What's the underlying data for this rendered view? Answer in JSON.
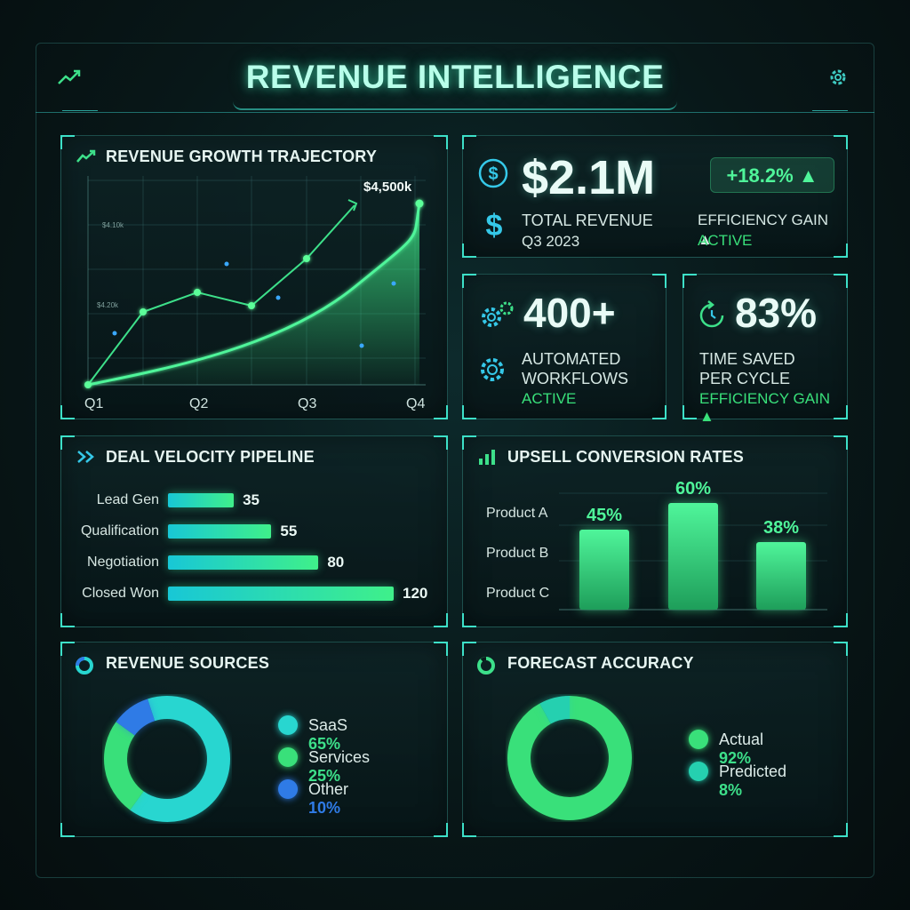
{
  "header": {
    "title": "REVENUE INTELLIGENCE",
    "left_icon": "trending-up-icon",
    "right_icon": "gear-icon"
  },
  "growth": {
    "title": "REVENUE GROWTH TRAJECTORY",
    "peak_label": "$4,500k",
    "y_ticks": [
      "$4.10k",
      "$4.20k"
    ],
    "chart_data": {
      "type": "line",
      "categories": [
        "Q1",
        "Q2",
        "Q3",
        "Q4"
      ],
      "title": "REVENUE GROWTH TRAJECTORY",
      "grid": true,
      "annotations": [
        "$4,500k"
      ]
    }
  },
  "total_revenue": {
    "value": "$2.1M",
    "label": "TOTAL REVENUE",
    "period": "Q3 2023",
    "badge": "+18.2% ▲",
    "gain_label": "EFFICIENCY GAIN ▲",
    "gain_status": "ACTIVE",
    "colors": {
      "accent": "#39e07a",
      "secondary": "#35c8e8"
    }
  },
  "workflows": {
    "value": "400+",
    "label_line1": "AUTOMATED",
    "label_line2": "WORKFLOWS",
    "status": "ACTIVE"
  },
  "time_saved": {
    "value": "83%",
    "label_line1": "TIME SAVED",
    "label_line2": "PER CYCLE",
    "status": "EFFICIENCY GAIN ▲"
  },
  "pipeline": {
    "title": "DEAL VELOCITY PIPELINE",
    "chart_data": {
      "type": "bar",
      "orientation": "horizontal",
      "title": "DEAL VELOCITY PIPELINE",
      "categories": [
        "Lead Gen",
        "Qualification",
        "Negotiation",
        "Closed Won"
      ],
      "values": [
        35,
        55,
        80,
        120
      ],
      "xlim": [
        0,
        120
      ]
    }
  },
  "upsell": {
    "title": "UPSELL CONVERSION RATES",
    "chart_data": {
      "type": "bar",
      "title": "UPSELL CONVERSION RATES",
      "categories": [
        "Product A",
        "Product B",
        "Product C"
      ],
      "values": [
        45,
        60,
        38
      ],
      "value_labels": [
        "45%",
        "60%",
        "38%"
      ],
      "ylim": [
        0,
        70
      ]
    }
  },
  "sources": {
    "title": "REVENUE SOURCES",
    "chart_data": {
      "type": "pie",
      "title": "REVENUE SOURCES",
      "labels": [
        "SaaS",
        "Services",
        "Other"
      ],
      "values": [
        65,
        25,
        10
      ],
      "value_labels": [
        "65%",
        "25%",
        "10%"
      ],
      "colors": [
        "#28d6d0",
        "#39e07a",
        "#2f7be6"
      ]
    }
  },
  "forecast": {
    "title": "FORECAST ACCURACY",
    "chart_data": {
      "type": "pie",
      "title": "FORECAST ACCURACY",
      "labels": [
        "Actual",
        "Predicted"
      ],
      "values": [
        92,
        8
      ],
      "value_labels": [
        "92%",
        "8%"
      ],
      "colors": [
        "#39e07a",
        "#25d0b0"
      ]
    }
  }
}
